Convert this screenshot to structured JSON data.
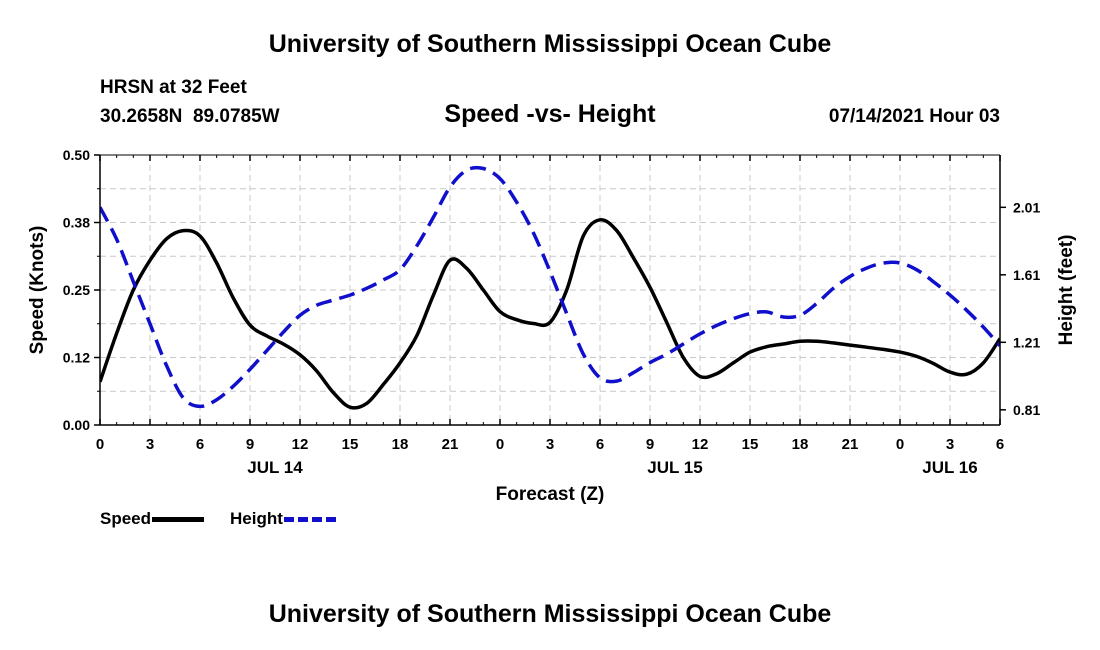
{
  "header": {
    "title": "University of Southern Mississippi Ocean Cube",
    "station": "HRSN at 32 Feet",
    "coords": "30.2658N  89.0785W",
    "chart_title": "Speed -vs- Height",
    "run_time": "07/14/2021 Hour 03"
  },
  "footer": {
    "title": "University of Southern Mississippi Ocean Cube"
  },
  "legend": {
    "speed_label": "Speed",
    "height_label": "Height"
  },
  "colors": {
    "speed": "#000000",
    "height": "#1010cc",
    "grid": "#c8c8c8"
  },
  "chart_data": {
    "type": "line",
    "title": "Speed -vs- Height",
    "xlabel": "Forecast (Z)",
    "ylabel": "Speed (Knots)",
    "y2label": "Height (feet)",
    "xlim": [
      0,
      54
    ],
    "ylim": [
      0,
      0.5
    ],
    "y2lim": [
      0.72,
      2.32
    ],
    "x_ticks": [
      0,
      3,
      6,
      9,
      12,
      15,
      18,
      21,
      24,
      27,
      30,
      33,
      36,
      39,
      42,
      45,
      48,
      51,
      54
    ],
    "x_tick_labels": [
      "0",
      "3",
      "6",
      "9",
      "12",
      "15",
      "18",
      "21",
      "0",
      "3",
      "6",
      "9",
      "12",
      "15",
      "18",
      "21",
      "0",
      "3",
      "6"
    ],
    "y_ticks": [
      0,
      0.125,
      0.25,
      0.375,
      0.5
    ],
    "y_tick_labels": [
      "0.00",
      "0.12",
      "0.25",
      "0.38",
      "0.50"
    ],
    "y2_ticks": [
      0.81,
      1.21,
      1.61,
      2.01
    ],
    "y2_tick_labels": [
      "0.81",
      "1.21",
      "1.61",
      "2.01"
    ],
    "day_labels": [
      {
        "x": 10.5,
        "label": "JUL 14"
      },
      {
        "x": 34.5,
        "label": "JUL 15"
      },
      {
        "x": 51,
        "label": "JUL 16"
      }
    ],
    "grid": true,
    "legend_position": "bottom-left",
    "series": [
      {
        "name": "Speed",
        "axis": "left",
        "style": "solid",
        "x": [
          0,
          1,
          2,
          3,
          4,
          5,
          6,
          7,
          8,
          9,
          10,
          11,
          12,
          13,
          14,
          15,
          16,
          17,
          18,
          19,
          20,
          21,
          22,
          23,
          24,
          25,
          26,
          27,
          28,
          29,
          30,
          31,
          32,
          33,
          34,
          35,
          36,
          37,
          38,
          39,
          40,
          41,
          42,
          43,
          44,
          45,
          46,
          47,
          48,
          49,
          50,
          51,
          52,
          53,
          54
        ],
        "values": [
          0.08,
          0.17,
          0.25,
          0.305,
          0.345,
          0.36,
          0.35,
          0.3,
          0.235,
          0.185,
          0.165,
          0.15,
          0.13,
          0.1,
          0.06,
          0.033,
          0.04,
          0.075,
          0.115,
          0.165,
          0.24,
          0.305,
          0.29,
          0.25,
          0.21,
          0.195,
          0.188,
          0.19,
          0.25,
          0.35,
          0.38,
          0.36,
          0.31,
          0.255,
          0.19,
          0.125,
          0.09,
          0.095,
          0.115,
          0.135,
          0.145,
          0.15,
          0.155,
          0.155,
          0.152,
          0.148,
          0.144,
          0.14,
          0.135,
          0.127,
          0.114,
          0.098,
          0.094,
          0.115,
          0.16
        ]
      },
      {
        "name": "Height",
        "axis": "right",
        "style": "dashed",
        "x": [
          0,
          1,
          2,
          3,
          4,
          5,
          6,
          7,
          8,
          9,
          10,
          11,
          12,
          13,
          14,
          15,
          16,
          17,
          18,
          19,
          20,
          21,
          22,
          23,
          24,
          25,
          26,
          27,
          28,
          29,
          30,
          31,
          32,
          33,
          34,
          35,
          36,
          37,
          38,
          39,
          40,
          41,
          42,
          43,
          44,
          45,
          46,
          47,
          48,
          49,
          50,
          51,
          52,
          53,
          54
        ],
        "values": [
          2.01,
          1.82,
          1.57,
          1.32,
          1.07,
          0.88,
          0.83,
          0.87,
          0.95,
          1.05,
          1.16,
          1.27,
          1.37,
          1.43,
          1.46,
          1.49,
          1.53,
          1.58,
          1.64,
          1.78,
          1.95,
          2.13,
          2.23,
          2.24,
          2.18,
          2.04,
          1.86,
          1.63,
          1.38,
          1.14,
          1.0,
          0.98,
          1.03,
          1.09,
          1.14,
          1.2,
          1.26,
          1.31,
          1.35,
          1.38,
          1.39,
          1.36,
          1.37,
          1.44,
          1.53,
          1.6,
          1.65,
          1.68,
          1.68,
          1.64,
          1.57,
          1.49,
          1.4,
          1.3,
          1.19
        ]
      }
    ]
  }
}
